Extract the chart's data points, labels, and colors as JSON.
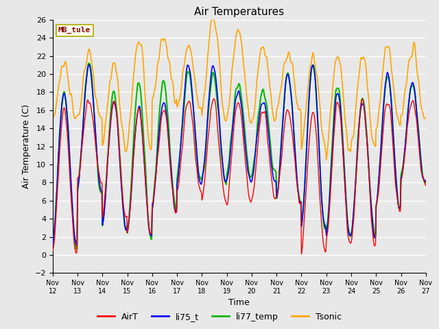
{
  "title": "Air Temperatures",
  "xlabel": "Time",
  "ylabel": "Air Temperature (C)",
  "ylim": [
    -2,
    26
  ],
  "yticks": [
    -2,
    0,
    2,
    4,
    6,
    8,
    10,
    12,
    14,
    16,
    18,
    20,
    22,
    24,
    26
  ],
  "xlim": [
    0,
    360
  ],
  "xtick_labels": [
    "Nov 12",
    "Nov 13",
    "Nov 14",
    "Nov 15",
    "Nov 16",
    "Nov 17",
    "Nov 18",
    "Nov 19",
    "Nov 20",
    "Nov 21",
    "Nov 22",
    "Nov 23",
    "Nov 24",
    "Nov 25",
    "Nov 26",
    "Nov 27"
  ],
  "xtick_positions": [
    0,
    24,
    48,
    72,
    96,
    120,
    144,
    168,
    192,
    216,
    240,
    264,
    288,
    312,
    336,
    360
  ],
  "annotation_text": "MB_tule",
  "annotation_color": "#8B0000",
  "annotation_bg": "#FFFFF0",
  "annotation_border": "#AAAA00",
  "colors": {
    "AirT": "#FF0000",
    "li75_t": "#0000FF",
    "li77_temp": "#00BB00",
    "Tsonic": "#FFA500"
  },
  "line_widths": {
    "AirT": 1.0,
    "li75_t": 1.2,
    "li77_temp": 1.5,
    "Tsonic": 1.2
  },
  "legend_labels": [
    "AirT",
    "li75_t",
    "li77_temp",
    "Tsonic"
  ],
  "background_color": "#E8E8E8",
  "plot_bg_color": "#E8E8E8",
  "grid_color": "#FFFFFF",
  "figsize": [
    6.4,
    4.8
  ],
  "dpi": 100
}
